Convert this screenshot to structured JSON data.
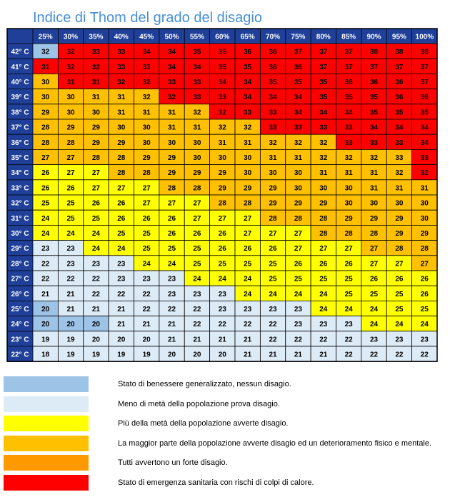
{
  "chart_data": {
    "type": "heatmap",
    "title": "Indice di Thom del grado del disagio",
    "columns": [
      "25%",
      "30%",
      "35%",
      "40%",
      "45%",
      "50%",
      "55%",
      "60%",
      "65%",
      "70%",
      "75%",
      "80%",
      "85%",
      "90%",
      "95%",
      "100%"
    ],
    "rows": [
      "42° C",
      "41° C",
      "40° C",
      "39° C",
      "38° C",
      "37° C",
      "36° C",
      "35° C",
      "34° C",
      "33° C",
      "32° C",
      "31° C",
      "30° C",
      "29° C",
      "28° C",
      "27° C",
      "26° C",
      "25° C",
      "24° C",
      "23° C",
      "22° C"
    ],
    "values": [
      [
        32,
        32,
        33,
        33,
        34,
        34,
        35,
        35,
        36,
        36,
        37,
        37,
        37,
        38,
        38,
        38
      ],
      [
        31,
        32,
        32,
        33,
        33,
        34,
        34,
        35,
        35,
        36,
        36,
        37,
        37,
        37,
        37,
        37
      ],
      [
        30,
        31,
        31,
        32,
        32,
        33,
        33,
        34,
        34,
        35,
        35,
        35,
        36,
        36,
        36,
        37
      ],
      [
        30,
        30,
        31,
        31,
        32,
        32,
        33,
        33,
        34,
        34,
        34,
        35,
        35,
        35,
        36,
        36
      ],
      [
        29,
        30,
        30,
        31,
        31,
        31,
        32,
        32,
        33,
        33,
        34,
        34,
        34,
        35,
        35,
        35
      ],
      [
        28,
        29,
        29,
        30,
        30,
        31,
        31,
        32,
        32,
        33,
        33,
        33,
        33,
        34,
        34,
        34
      ],
      [
        28,
        28,
        29,
        29,
        30,
        30,
        30,
        31,
        31,
        32,
        32,
        32,
        33,
        33,
        33,
        34
      ],
      [
        27,
        27,
        28,
        28,
        29,
        29,
        30,
        30,
        30,
        31,
        31,
        32,
        32,
        32,
        33,
        33
      ],
      [
        26,
        27,
        27,
        28,
        28,
        29,
        29,
        29,
        30,
        30,
        30,
        31,
        31,
        31,
        32,
        32
      ],
      [
        26,
        26,
        27,
        27,
        27,
        28,
        28,
        29,
        29,
        29,
        30,
        30,
        30,
        31,
        31,
        31
      ],
      [
        25,
        25,
        26,
        26,
        27,
        27,
        27,
        28,
        28,
        29,
        29,
        29,
        30,
        30,
        30,
        30
      ],
      [
        24,
        25,
        25,
        26,
        26,
        26,
        27,
        27,
        27,
        28,
        28,
        28,
        29,
        29,
        29,
        30
      ],
      [
        24,
        24,
        24,
        25,
        25,
        26,
        26,
        26,
        27,
        27,
        27,
        28,
        28,
        28,
        29,
        29
      ],
      [
        23,
        23,
        24,
        24,
        25,
        25,
        25,
        26,
        26,
        26,
        27,
        27,
        27,
        27,
        28,
        28
      ],
      [
        22,
        23,
        23,
        23,
        24,
        24,
        25,
        25,
        25,
        25,
        26,
        26,
        26,
        27,
        27,
        27
      ],
      [
        22,
        22,
        22,
        23,
        23,
        23,
        24,
        24,
        24,
        25,
        25,
        25,
        25,
        26,
        26,
        26
      ],
      [
        21,
        21,
        22,
        22,
        22,
        23,
        23,
        23,
        24,
        24,
        24,
        24,
        25,
        25,
        25,
        26
      ],
      [
        20,
        21,
        21,
        21,
        22,
        22,
        22,
        23,
        23,
        23,
        23,
        24,
        24,
        24,
        25,
        25
      ],
      [
        20,
        20,
        20,
        21,
        21,
        21,
        22,
        22,
        22,
        22,
        23,
        23,
        23,
        24,
        24,
        24
      ],
      [
        19,
        19,
        20,
        20,
        20,
        21,
        21,
        21,
        21,
        22,
        22,
        22,
        22,
        23,
        23,
        23
      ],
      [
        18,
        19,
        19,
        19,
        19,
        20,
        20,
        20,
        21,
        21,
        21,
        21,
        22,
        22,
        22,
        22
      ]
    ],
    "categories": [
      [
        0,
        1,
        1,
        1,
        1,
        1,
        1,
        1,
        1,
        1,
        1,
        1,
        1,
        1,
        1,
        1
      ],
      [
        1,
        1,
        1,
        1,
        1,
        1,
        1,
        1,
        1,
        1,
        1,
        1,
        1,
        1,
        1,
        1
      ],
      [
        3,
        1,
        1,
        1,
        1,
        1,
        1,
        1,
        1,
        1,
        1,
        1,
        1,
        1,
        1,
        1
      ],
      [
        3,
        3,
        3,
        3,
        3,
        1,
        1,
        1,
        1,
        1,
        1,
        1,
        1,
        1,
        1,
        1
      ],
      [
        3,
        3,
        3,
        3,
        3,
        3,
        3,
        1,
        1,
        1,
        1,
        1,
        1,
        1,
        1,
        1
      ],
      [
        3,
        3,
        3,
        3,
        3,
        3,
        3,
        3,
        3,
        1,
        1,
        1,
        1,
        1,
        1,
        1
      ],
      [
        3,
        3,
        3,
        3,
        3,
        3,
        3,
        3,
        3,
        3,
        3,
        3,
        1,
        1,
        1,
        1
      ],
      [
        3,
        3,
        3,
        3,
        3,
        3,
        3,
        3,
        3,
        3,
        3,
        3,
        3,
        3,
        3,
        1
      ],
      [
        5,
        5,
        5,
        3,
        3,
        3,
        3,
        3,
        3,
        3,
        3,
        3,
        3,
        3,
        3,
        1
      ],
      [
        5,
        5,
        5,
        5,
        5,
        3,
        3,
        3,
        3,
        3,
        3,
        3,
        3,
        3,
        3,
        3
      ],
      [
        5,
        5,
        5,
        5,
        5,
        5,
        5,
        3,
        3,
        3,
        3,
        3,
        3,
        3,
        3,
        3
      ],
      [
        5,
        5,
        5,
        5,
        5,
        5,
        5,
        5,
        5,
        3,
        3,
        3,
        3,
        3,
        3,
        3
      ],
      [
        5,
        5,
        5,
        5,
        5,
        5,
        5,
        5,
        5,
        5,
        5,
        3,
        3,
        3,
        3,
        3
      ],
      [
        6,
        6,
        5,
        5,
        5,
        5,
        5,
        5,
        5,
        5,
        5,
        5,
        5,
        3,
        3,
        3
      ],
      [
        6,
        6,
        6,
        6,
        5,
        5,
        5,
        5,
        5,
        5,
        5,
        5,
        5,
        5,
        5,
        3
      ],
      [
        6,
        6,
        6,
        6,
        6,
        6,
        5,
        5,
        5,
        5,
        5,
        5,
        5,
        5,
        5,
        5
      ],
      [
        6,
        6,
        6,
        6,
        6,
        6,
        6,
        6,
        5,
        5,
        5,
        5,
        5,
        5,
        5,
        5
      ],
      [
        0,
        6,
        6,
        6,
        6,
        6,
        6,
        6,
        6,
        6,
        6,
        5,
        5,
        5,
        5,
        5
      ],
      [
        0,
        0,
        0,
        6,
        6,
        6,
        6,
        6,
        6,
        6,
        6,
        6,
        6,
        5,
        5,
        5
      ],
      [
        6,
        6,
        6,
        6,
        6,
        6,
        6,
        6,
        6,
        6,
        6,
        6,
        6,
        6,
        6,
        6
      ],
      [
        6,
        6,
        6,
        6,
        6,
        6,
        6,
        6,
        6,
        6,
        6,
        6,
        6,
        6,
        6,
        6
      ]
    ],
    "grid": true
  },
  "legend": [
    {
      "color": "#9dc3e6",
      "cat": 0,
      "text": "Stato di benessere generalizzato, nessun disagio."
    },
    {
      "color": "#ddebf7",
      "cat": 6,
      "text": "Meno di metà della popolazione prova disagio."
    },
    {
      "color": "#ffff00",
      "cat": 5,
      "text": "Più della metà della popolazione avverte disagio."
    },
    {
      "color": "#ffc000",
      "cat": 3,
      "text": "La maggior parte della popolazione avverte disagio ed un deterioramento fisico e mentale."
    },
    {
      "color": "#ff9900",
      "cat": 4,
      "text": "Tutti avvertono un forte disagio."
    },
    {
      "color": "#ff0000",
      "cat": 1,
      "text": "Stato di emergenza sanitaria con rischi di colpi di calore."
    }
  ],
  "colors": {
    "header_bg": "#1f3f99",
    "header_text": "#ffffff",
    "cat0": "#9dc3e6",
    "cat1": "#ff0000",
    "cat3": "#ffc000",
    "cat4": "#ff9900",
    "cat5": "#ffff00",
    "cat6": "#ddebf7",
    "title": "#4a8fd6"
  }
}
